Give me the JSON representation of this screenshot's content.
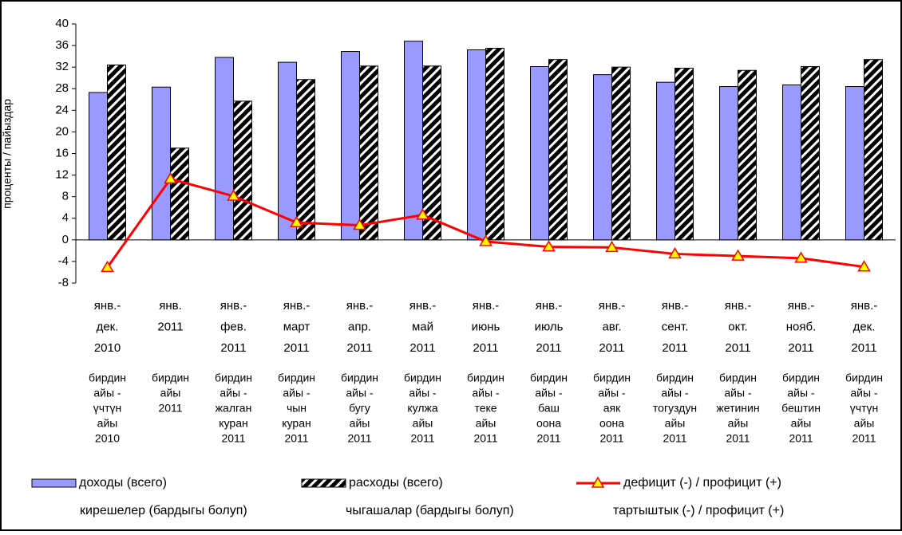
{
  "chart_data": {
    "type": "bar-line",
    "y_label": "проценты / пайыздар",
    "categories": [
      [
        "янв.-",
        "дек.",
        "2010"
      ],
      [
        "янв.",
        "2011"
      ],
      [
        "янв.-",
        "фев.",
        "2011"
      ],
      [
        "янв.-",
        "март",
        "2011"
      ],
      [
        "янв.-",
        "апр.",
        "2011"
      ],
      [
        "янв.-",
        "май",
        "2011"
      ],
      [
        "янв.-",
        "июнь",
        "2011"
      ],
      [
        "янв.-",
        "июль",
        "2011"
      ],
      [
        "янв.-",
        "авг.",
        "2011"
      ],
      [
        "янв.-",
        "сент.",
        "2011"
      ],
      [
        "янв.-",
        "окт.",
        "2011"
      ],
      [
        "янв.-",
        "нояб.",
        "2011"
      ],
      [
        "янв.-",
        "дек.",
        "2011"
      ]
    ],
    "categories_ky": [
      [
        "бирдин",
        "айы -",
        "үчтүн",
        "айы",
        "2010"
      ],
      [
        "бирдин",
        "айы",
        "2011"
      ],
      [
        "бирдин",
        "айы -",
        "жалган",
        "куран",
        "2011"
      ],
      [
        "бирдин",
        "айы -",
        "чын",
        "куран",
        "2011"
      ],
      [
        "бирдин",
        "айы -",
        "бугу",
        "айы",
        "2011"
      ],
      [
        "бирдин",
        "айы -",
        "кулжа",
        "айы",
        "2011"
      ],
      [
        "бирдин",
        "айы -",
        "теке",
        "айы",
        "2011"
      ],
      [
        "бирдин",
        "айы -",
        "баш",
        "оона",
        "2011"
      ],
      [
        "бирдин",
        "айы -",
        "аяк",
        "оона",
        "2011"
      ],
      [
        "бирдин",
        "айы -",
        "тогуздун",
        "айы",
        "2011"
      ],
      [
        "бирдин",
        "айы -",
        "жетинин",
        "айы",
        "2011"
      ],
      [
        "бирдин",
        "айы -",
        "бештин",
        "айы",
        "2011"
      ],
      [
        "бирдин",
        "айы -",
        "үчтүн",
        "айы",
        "2011"
      ]
    ],
    "series": [
      {
        "name": "доходы (всего)",
        "name_ky": "кирешелер (бардыгы болуп)",
        "type": "bar",
        "color": "#9999ff",
        "values": [
          27.3,
          28.3,
          33.8,
          32.9,
          34.9,
          36.8,
          35.2,
          32.1,
          30.6,
          29.2,
          28.4,
          28.7,
          28.4
        ]
      },
      {
        "name": "расходы (всего)",
        "name_ky": "чыгашалар (бардыгы болуп)",
        "type": "hatched-bar",
        "color": "#000000",
        "values": [
          32.4,
          17.0,
          25.7,
          29.7,
          32.2,
          32.2,
          35.5,
          33.4,
          32.0,
          31.8,
          31.4,
          32.1,
          33.4
        ]
      },
      {
        "name": "дефицит (-) / профицит (+)",
        "name_ky": "тартыштык (-) / профицит (+)",
        "type": "line",
        "color": "#ff0000",
        "marker_color": "#ffff00",
        "values": [
          -5.1,
          11.3,
          8.1,
          3.2,
          2.7,
          4.6,
          -0.3,
          -1.3,
          -1.4,
          -2.6,
          -3.0,
          -3.4,
          -5.0
        ]
      }
    ],
    "ylim": [
      -8,
      40
    ],
    "yticks": [
      -8,
      -4,
      0,
      4,
      8,
      12,
      16,
      20,
      24,
      28,
      32,
      36,
      40
    ]
  }
}
